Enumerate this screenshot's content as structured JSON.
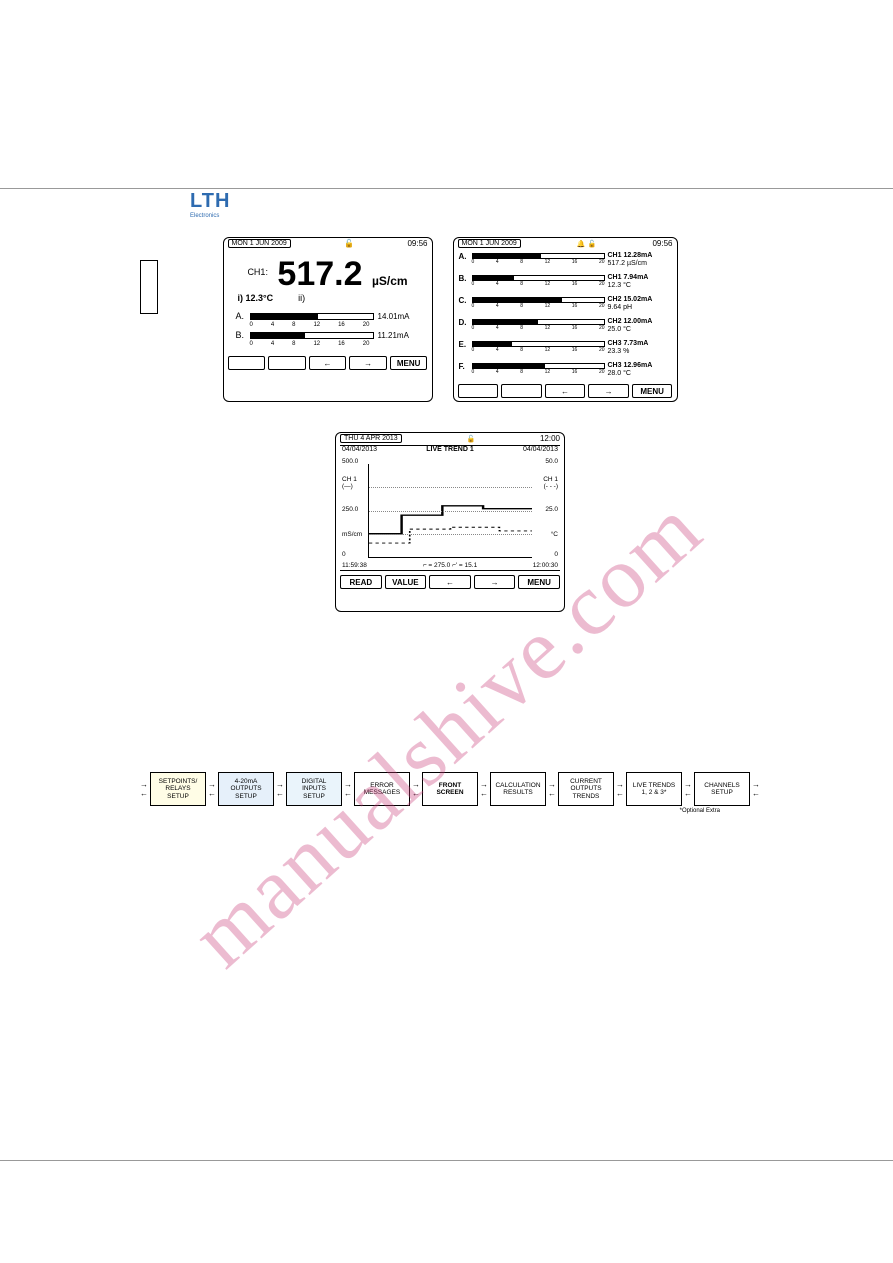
{
  "logo": {
    "brand": "LTH",
    "sub": "Electronics"
  },
  "screen1": {
    "date": "MON 1 JUN 2009",
    "time": "09:56",
    "ch": "CH1:",
    "value": "517.2",
    "unit": "µS/cm",
    "sub_i": "i) 12.3°C",
    "sub_ii": "ii)",
    "rows": [
      {
        "label": "A.",
        "fill": 55,
        "value": "14.01mA"
      },
      {
        "label": "B.",
        "fill": 45,
        "value": "11.21mA"
      }
    ],
    "scale": [
      "0",
      "4",
      "8",
      "12",
      "16",
      "20"
    ],
    "menu": "MENU"
  },
  "screen2": {
    "date": "MON 1 JUN 2009",
    "time": "09:56",
    "rows": [
      {
        "label": "A.",
        "fill": 52,
        "l1": "CH1  12.28mA",
        "l2": "517.2 µS/cm"
      },
      {
        "label": "B.",
        "fill": 32,
        "l1": "CH1  7.94mA",
        "l2": "12.3 °C"
      },
      {
        "label": "C.",
        "fill": 68,
        "l1": "CH2  15.02mA",
        "l2": "9.64 pH"
      },
      {
        "label": "D.",
        "fill": 50,
        "l1": "CH2  12.00mA",
        "l2": "25.0 °C"
      },
      {
        "label": "E.",
        "fill": 30,
        "l1": "CH3  7.73mA",
        "l2": "23.3 %"
      },
      {
        "label": "F.",
        "fill": 55,
        "l1": "CH3  12.96mA",
        "l2": "28.0 °C"
      }
    ],
    "scale": [
      "0",
      "4",
      "8",
      "12",
      "16",
      "20"
    ],
    "menu": "MENU"
  },
  "screen3": {
    "date": "THU 4 APR 2013",
    "time": "12:00",
    "d1": "04/04/2013",
    "title": "LIVE TREND 1",
    "d2": "04/04/2013",
    "yl_top": "500.0",
    "yl_mid": "250.0",
    "yl_unit": "mS/cm",
    "yl_bot": "0",
    "yr_top": "50.0",
    "yr_mid": "25.0",
    "yr_unit": "°C",
    "yr_bot": "0",
    "chl": "CH 1\n(—)",
    "chr": "CH 1\n(- - -)",
    "xt_l": "11:59:38",
    "xt_r": "12:00:30",
    "cursor": "⌐ = 275.0    ⌐' = 15.1",
    "btn_read": "READ",
    "btn_value": "VALUE",
    "menu": "MENU"
  },
  "flow": {
    "boxes": [
      {
        "text": "SETPOINTS/\nRELAYS\nSETUP",
        "cls": "shade-yellow"
      },
      {
        "text": "4-20mA\nOUTPUTS\nSETUP",
        "cls": "shade-blue"
      },
      {
        "text": "DIGITAL\nINPUTS\nSETUP",
        "cls": "shade-lblue"
      },
      {
        "text": "ERROR\nMESSAGES",
        "cls": ""
      },
      {
        "text": "FRONT\nSCREEN",
        "cls": "center"
      },
      {
        "text": "CALCULATION\nRESULTS",
        "cls": ""
      },
      {
        "text": "CURRENT\nOUTPUTS\nTRENDS",
        "cls": ""
      },
      {
        "text": "LIVE TRENDS\n1, 2 & 3*",
        "cls": ""
      },
      {
        "text": "CHANNELS\nSETUP",
        "cls": ""
      }
    ],
    "note": "*Optional Extra"
  },
  "watermark": "manualshive.com",
  "arrows": {
    "left": "←",
    "right": "→",
    "both_l": "←",
    "both_r": "→"
  }
}
